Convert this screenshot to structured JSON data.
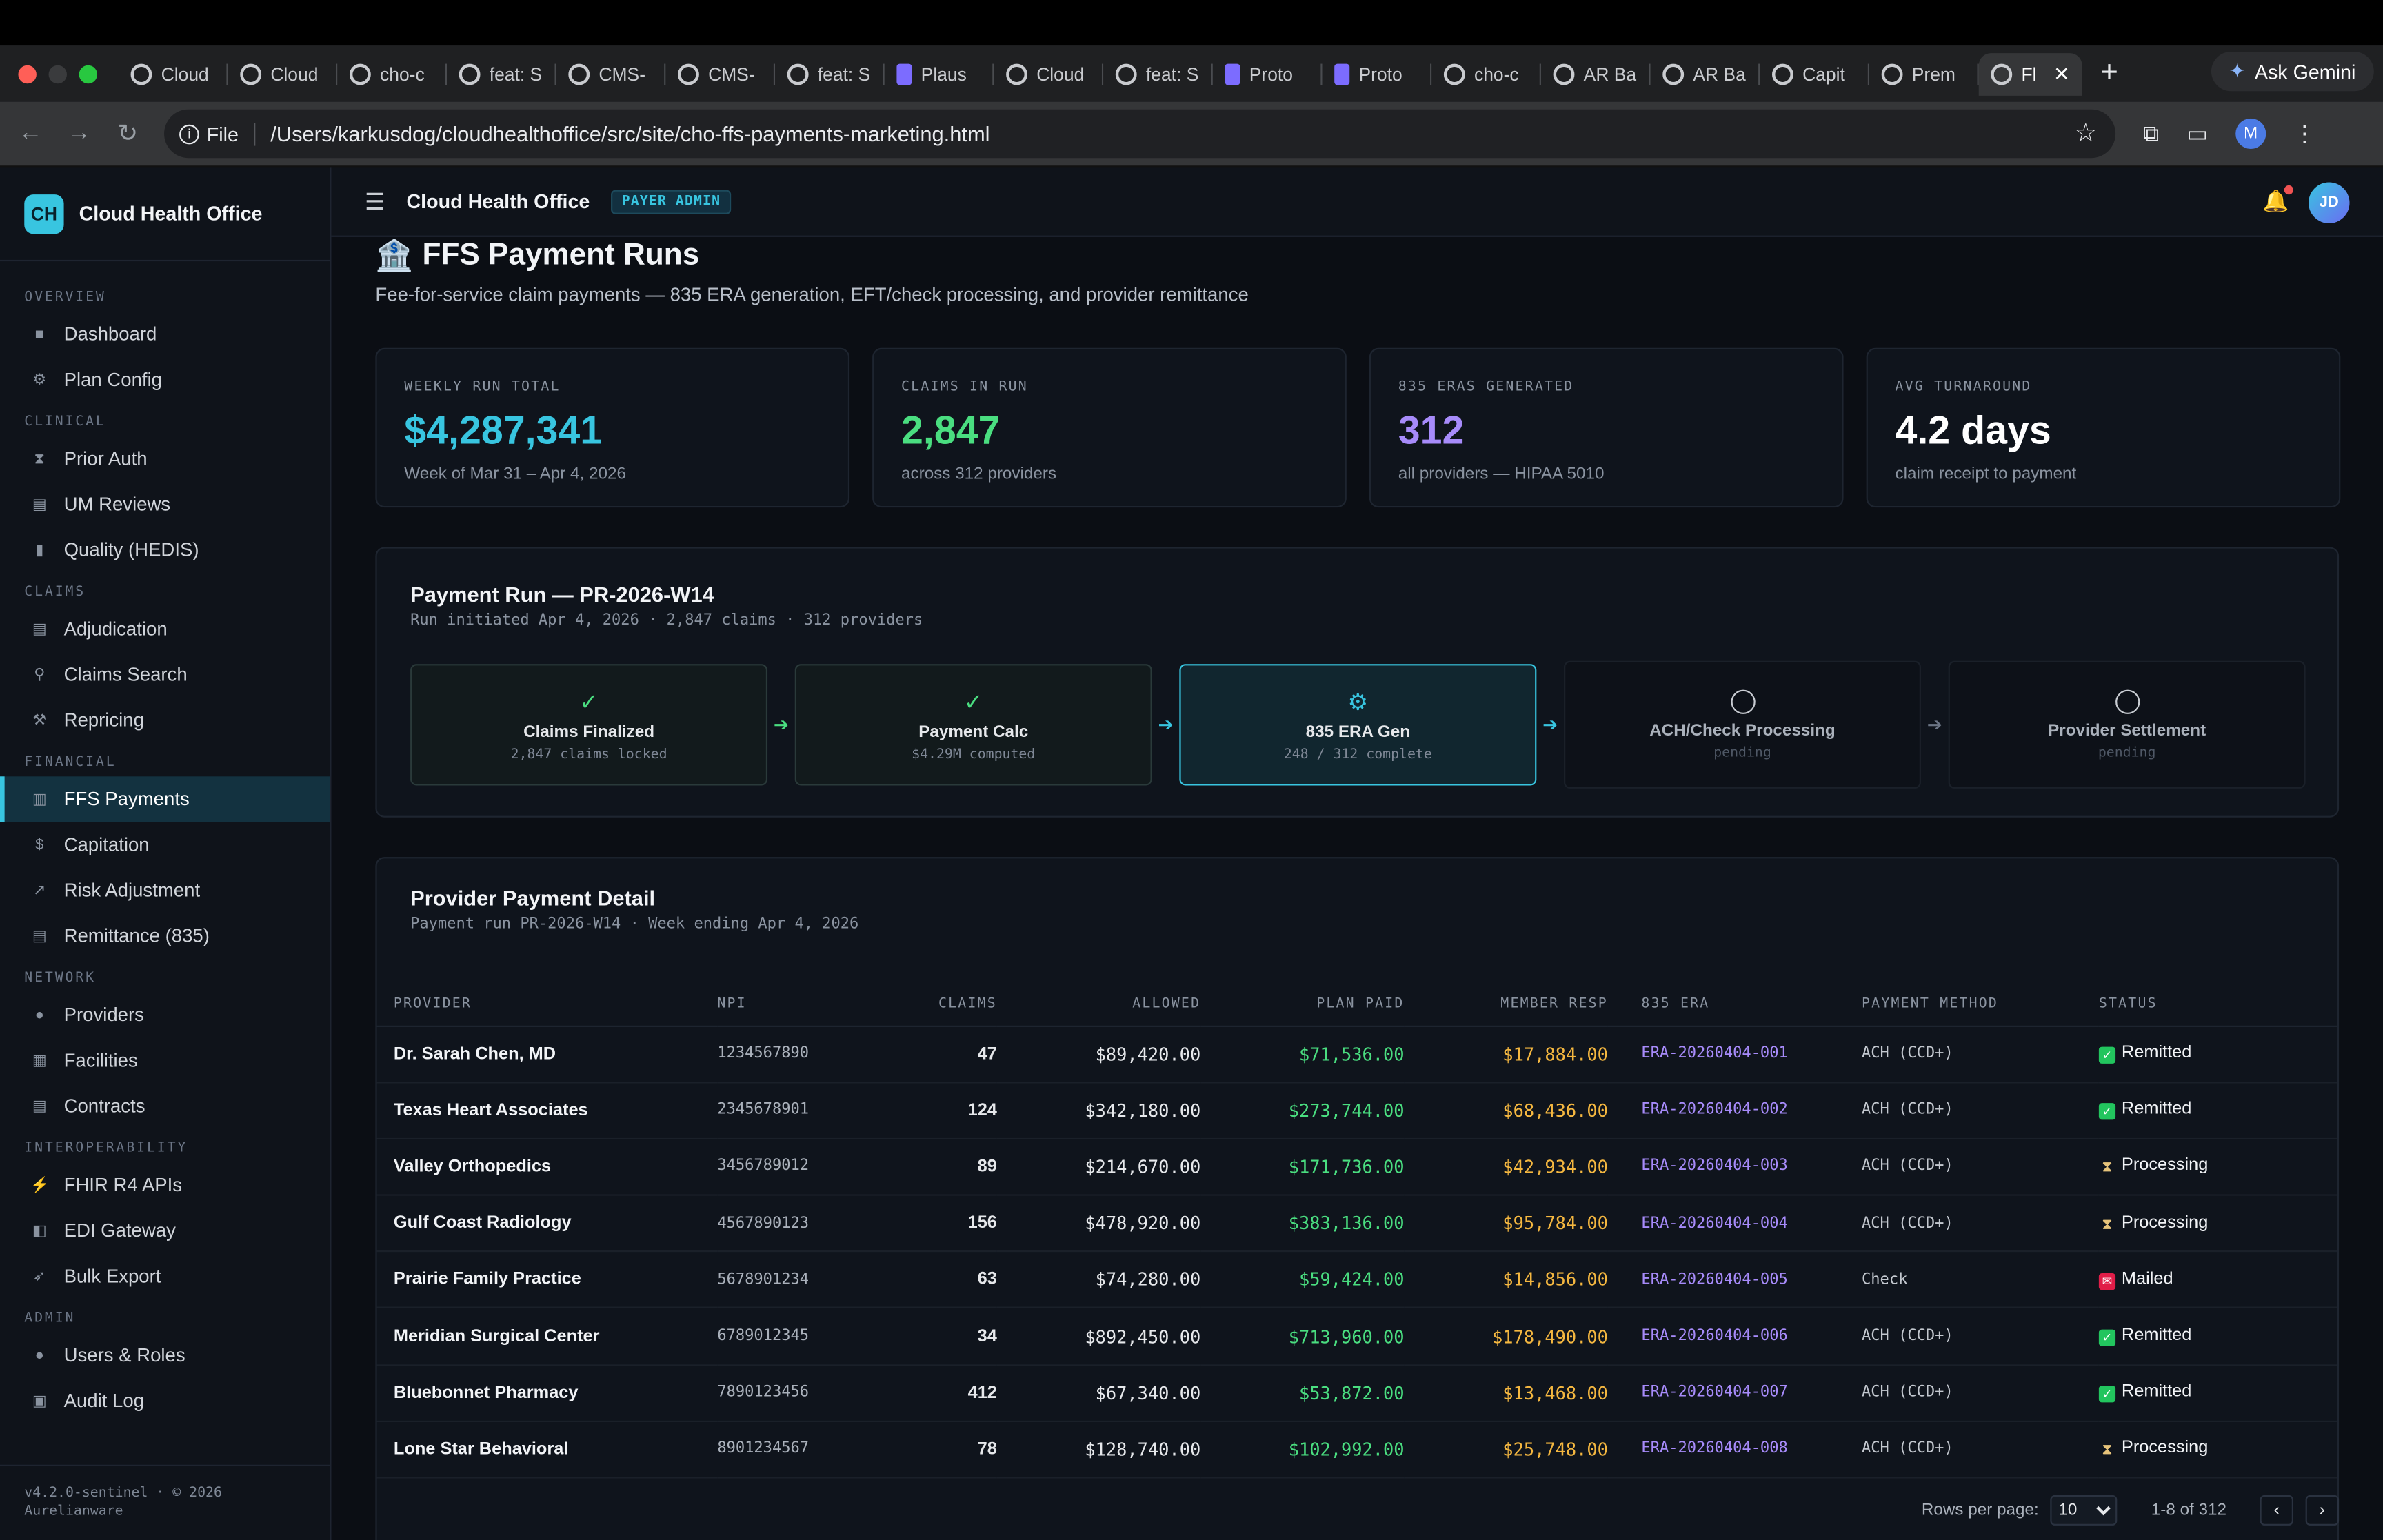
{
  "browser": {
    "tabs": [
      {
        "label": "Cloud",
        "icon": "globe-icon"
      },
      {
        "label": "Cloud",
        "icon": "globe-icon"
      },
      {
        "label": "cho-c",
        "icon": "globe-icon"
      },
      {
        "label": "feat: S",
        "icon": "github-icon"
      },
      {
        "label": "CMS-",
        "icon": "globe-icon"
      },
      {
        "label": "CMS-",
        "icon": "globe-icon"
      },
      {
        "label": "feat: S",
        "icon": "github-icon"
      },
      {
        "label": "Plaus",
        "icon": "plausible-icon"
      },
      {
        "label": "Cloud",
        "icon": "globe-icon"
      },
      {
        "label": "feat: S",
        "icon": "github-icon"
      },
      {
        "label": "Proto",
        "icon": "proton-icon"
      },
      {
        "label": "Proto",
        "icon": "proton-icon"
      },
      {
        "label": "cho-c",
        "icon": "globe-icon"
      },
      {
        "label": "AR Ba",
        "icon": "globe-icon"
      },
      {
        "label": "AR Ba",
        "icon": "globe-icon"
      },
      {
        "label": "Capit",
        "icon": "globe-icon"
      },
      {
        "label": "Prem",
        "icon": "globe-icon"
      }
    ],
    "active_tab": "Fl",
    "new_tab": "+",
    "ask_gemini": "Ask Gemini",
    "file_chip": "File",
    "url": "/Users/karkusdog/cloudhealthoffice/src/site/cho-ffs-payments-marketing.html",
    "profile_initial": "M"
  },
  "sidebar": {
    "logo": "CH",
    "brand": "Cloud Health Office",
    "sections": [
      {
        "title": "OVERVIEW",
        "items": [
          {
            "label": "Dashboard",
            "icon": "square-icon"
          },
          {
            "label": "Plan Config",
            "icon": "gear-icon"
          }
        ]
      },
      {
        "title": "CLINICAL",
        "items": [
          {
            "label": "Prior Auth",
            "icon": "hourglass-icon"
          },
          {
            "label": "UM Reviews",
            "icon": "document-icon"
          },
          {
            "label": "Quality (HEDIS)",
            "icon": "bar-chart-icon"
          }
        ]
      },
      {
        "title": "CLAIMS",
        "items": [
          {
            "label": "Adjudication",
            "icon": "clipboard-icon"
          },
          {
            "label": "Claims Search",
            "icon": "search-icon"
          },
          {
            "label": "Repricing",
            "icon": "tools-icon"
          }
        ]
      },
      {
        "title": "FINANCIAL",
        "items": [
          {
            "label": "FFS Payments",
            "icon": "bank-icon",
            "active": true
          },
          {
            "label": "Capitation",
            "icon": "money-bag-icon"
          },
          {
            "label": "Risk Adjustment",
            "icon": "trend-chart-icon"
          },
          {
            "label": "Remittance (835)",
            "icon": "document-icon"
          }
        ]
      },
      {
        "title": "NETWORK",
        "items": [
          {
            "label": "Providers",
            "icon": "people-icon"
          },
          {
            "label": "Facilities",
            "icon": "building-icon"
          },
          {
            "label": "Contracts",
            "icon": "document-icon"
          }
        ]
      },
      {
        "title": "INTEROPERABILITY",
        "items": [
          {
            "label": "FHIR R4 APIs",
            "icon": "plug-icon"
          },
          {
            "label": "EDI Gateway",
            "icon": "id-icon"
          },
          {
            "label": "Bulk Export",
            "icon": "rocket-icon"
          }
        ]
      },
      {
        "title": "ADMIN",
        "items": [
          {
            "label": "Users & Roles",
            "icon": "user-icon"
          },
          {
            "label": "Audit Log",
            "icon": "lock-icon"
          }
        ]
      }
    ],
    "footer": "v4.2.0-sentinel · © 2026 Aurelianware"
  },
  "topbar": {
    "title": "Cloud Health Office",
    "badge": "PAYER ADMIN",
    "user_initials": "JD"
  },
  "page": {
    "title": "FFS Payment Runs",
    "subtitle": "Fee-for-service claim payments — 835 ERA generation, EFT/check processing, and provider remittance"
  },
  "stats": [
    {
      "label": "WEEKLY RUN TOTAL",
      "value": "$4,287,341",
      "sub": "Week of Mar 31 – Apr 4, 2026",
      "color": "#38c5e0"
    },
    {
      "label": "CLAIMS IN RUN",
      "value": "2,847",
      "sub": "across 312 providers",
      "color": "#4ade80"
    },
    {
      "label": "835 ERAS GENERATED",
      "value": "312",
      "sub": "all providers — HIPAA 5010",
      "color": "#a78bfa"
    },
    {
      "label": "AVG TURNAROUND",
      "value": "4.2 days",
      "sub": "claim receipt to payment",
      "color": "#ffffff"
    }
  ],
  "run": {
    "title": "Payment Run — PR-2026-W14",
    "subtitle": "Run initiated Apr 4, 2026 · 2,847 claims · 312 providers",
    "steps": [
      {
        "name": "Claims Finalized",
        "detail": "2,847 claims locked",
        "state": "done"
      },
      {
        "name": "Payment Calc",
        "detail": "$4.29M computed",
        "state": "done"
      },
      {
        "name": "835 ERA Gen",
        "detail": "248 / 312 complete",
        "state": "current"
      },
      {
        "name": "ACH/Check Processing",
        "detail": "pending",
        "state": "pending"
      },
      {
        "name": "Provider Settlement",
        "detail": "pending",
        "state": "pending"
      }
    ]
  },
  "detail": {
    "title": "Provider Payment Detail",
    "subtitle": "Payment run PR-2026-W14 · Week ending Apr 4, 2026",
    "columns": [
      "PROVIDER",
      "NPI",
      "CLAIMS",
      "ALLOWED",
      "PLAN PAID",
      "MEMBER RESP",
      "835 ERA",
      "PAYMENT METHOD",
      "STATUS"
    ],
    "rows": [
      {
        "provider": "Dr. Sarah Chen, MD",
        "npi": "1234567890",
        "claims": "47",
        "allowed": "$89,420.00",
        "paid": "$71,536.00",
        "resp": "$17,884.00",
        "era": "ERA-20260404-001",
        "method": "ACH (CCD+)",
        "status": "Remitted"
      },
      {
        "provider": "Texas Heart Associates",
        "npi": "2345678901",
        "claims": "124",
        "allowed": "$342,180.00",
        "paid": "$273,744.00",
        "resp": "$68,436.00",
        "era": "ERA-20260404-002",
        "method": "ACH (CCD+)",
        "status": "Remitted"
      },
      {
        "provider": "Valley Orthopedics",
        "npi": "3456789012",
        "claims": "89",
        "allowed": "$214,670.00",
        "paid": "$171,736.00",
        "resp": "$42,934.00",
        "era": "ERA-20260404-003",
        "method": "ACH (CCD+)",
        "status": "Processing"
      },
      {
        "provider": "Gulf Coast Radiology",
        "npi": "4567890123",
        "claims": "156",
        "allowed": "$478,920.00",
        "paid": "$383,136.00",
        "resp": "$95,784.00",
        "era": "ERA-20260404-004",
        "method": "ACH (CCD+)",
        "status": "Processing"
      },
      {
        "provider": "Prairie Family Practice",
        "npi": "5678901234",
        "claims": "63",
        "allowed": "$74,280.00",
        "paid": "$59,424.00",
        "resp": "$14,856.00",
        "era": "ERA-20260404-005",
        "method": "Check",
        "status": "Mailed"
      },
      {
        "provider": "Meridian Surgical Center",
        "npi": "6789012345",
        "claims": "34",
        "allowed": "$892,450.00",
        "paid": "$713,960.00",
        "resp": "$178,490.00",
        "era": "ERA-20260404-006",
        "method": "ACH (CCD+)",
        "status": "Remitted"
      },
      {
        "provider": "Bluebonnet Pharmacy",
        "npi": "7890123456",
        "claims": "412",
        "allowed": "$67,340.00",
        "paid": "$53,872.00",
        "resp": "$13,468.00",
        "era": "ERA-20260404-007",
        "method": "ACH (CCD+)",
        "status": "Remitted"
      },
      {
        "provider": "Lone Star Behavioral",
        "npi": "8901234567",
        "claims": "78",
        "allowed": "$128,740.00",
        "paid": "$102,992.00",
        "resp": "$25,748.00",
        "era": "ERA-20260404-008",
        "method": "ACH (CCD+)",
        "status": "Processing"
      }
    ],
    "pager": {
      "rows_label": "Rows per page:",
      "rows_value": "10",
      "range": "1-8 of 312"
    }
  }
}
